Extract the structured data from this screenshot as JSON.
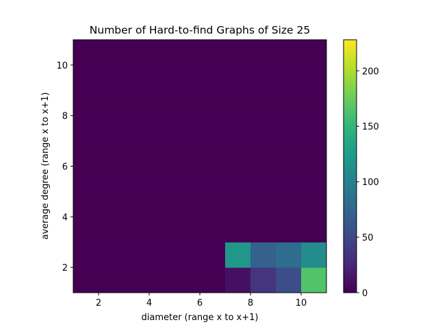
{
  "chart_data": {
    "type": "heatmap",
    "title": "Number of Hard-to-find Graphs of Size 25",
    "xlabel": "diameter (range x to x+1)",
    "ylabel": "average degree (range x to x+1)",
    "xlim": [
      1,
      11
    ],
    "ylim": [
      1,
      11
    ],
    "x_edges": [
      1,
      2,
      3,
      4,
      5,
      6,
      7,
      8,
      9,
      10,
      11
    ],
    "y_edges": [
      1,
      2,
      3,
      4,
      5,
      6,
      7,
      8,
      9,
      10,
      11
    ],
    "x_ticks": [
      "2",
      "4",
      "6",
      "8",
      "10"
    ],
    "y_ticks": [
      "2",
      "4",
      "6",
      "8",
      "10"
    ],
    "cells": [
      {
        "x": 7,
        "y": 1,
        "value": 10
      },
      {
        "x": 8,
        "y": 1,
        "value": 35
      },
      {
        "x": 9,
        "y": 1,
        "value": 55
      },
      {
        "x": 10,
        "y": 1,
        "value": 165
      },
      {
        "x": 7,
        "y": 2,
        "value": 120
      },
      {
        "x": 8,
        "y": 2,
        "value": 70
      },
      {
        "x": 9,
        "y": 2,
        "value": 80
      },
      {
        "x": 10,
        "y": 2,
        "value": 110
      }
    ],
    "default_value": 0,
    "colormap": "viridis",
    "colorbar": {
      "vmin": 0,
      "vmax": 228,
      "ticks": [
        "0",
        "50",
        "100",
        "150",
        "200"
      ]
    }
  }
}
